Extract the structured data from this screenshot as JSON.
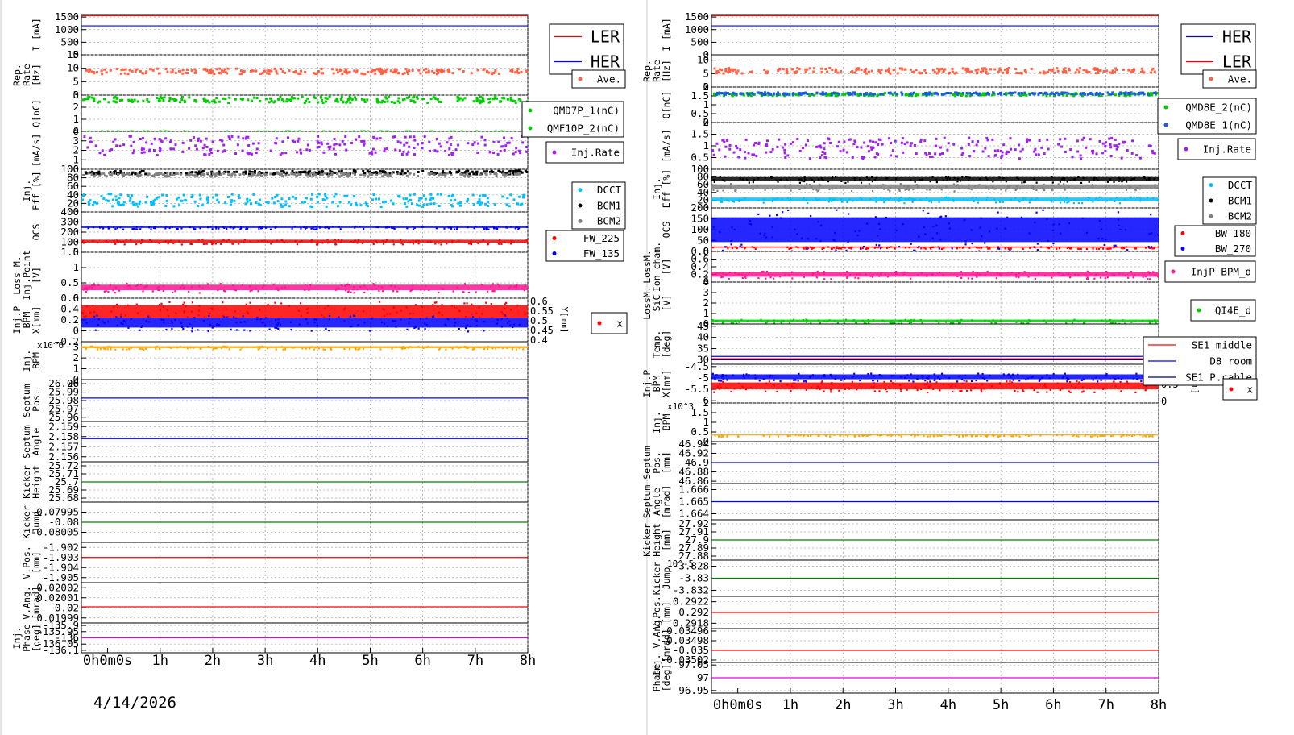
{
  "date": "4/14/2026",
  "time_ticks": [
    "0h0m0s",
    "1h",
    "2h",
    "3h",
    "4h",
    "5h",
    "6h",
    "7h",
    "8h"
  ],
  "colors": {
    "red": "#ff0000",
    "blue": "#0000ff",
    "salmon": "#ff6347",
    "green": "#00cc00",
    "purple": "#a020f0",
    "gray": "#808080",
    "black": "#000000",
    "cyan": "#00bfff",
    "pink": "#ff1493",
    "orange": "#ffa500",
    "darkgreen": "#008000",
    "magenta": "#e000e0",
    "navy": "#000080",
    "steelblue": "#1e5adc"
  },
  "chart_data": [
    {
      "type": "scatter",
      "title": "",
      "x_range": [
        "0h",
        "8h"
      ],
      "panels": [
        {
          "ylabel": [
            "I [mA]"
          ],
          "yticks": [
            "1500",
            "1000",
            "500",
            "0"
          ],
          "ylim": [
            0,
            1600
          ],
          "series": [
            {
              "name": "LER",
              "kind": "line",
              "color": "red",
              "level": 1550
            },
            {
              "name": "HER",
              "kind": "line",
              "color": "blue",
              "level": 1150
            }
          ]
        },
        {
          "ylabel": [
            "Rep.",
            "Rate",
            "[Hz]"
          ],
          "yticks": [
            "15",
            "10",
            "5",
            "0"
          ],
          "ylim": [
            0,
            15
          ],
          "series": [
            {
              "name": "Ave.",
              "kind": "dots",
              "color": "salmon",
              "level": 9.3,
              "spread": 1.0
            }
          ]
        },
        {
          "ylabel": [
            "Q[nC]"
          ],
          "yticks": [
            "3",
            "2",
            "1",
            "0"
          ],
          "ylim": [
            0,
            3
          ],
          "series": [
            {
              "name": "QMD7P_1(nC)",
              "kind": "dots",
              "color": "green",
              "level": 2.7,
              "spread": 0.25
            },
            {
              "name": "QMF10P_2(nC)",
              "kind": "dots",
              "color": "green",
              "level": 0.05,
              "spread": 0.05
            }
          ]
        },
        {
          "ylabel": [
            "[mA/s]"
          ],
          "yticks": [
            "4",
            "3",
            "2",
            "1",
            "0"
          ],
          "ylim": [
            0,
            4
          ],
          "series": [
            {
              "name": "Inj.Rate",
              "kind": "dots",
              "color": "purple",
              "level": 2.6,
              "spread": 1.0
            }
          ]
        },
        {
          "ylabel": [
            "Inj.",
            "Eff [%]"
          ],
          "yticks": [
            "100",
            "80",
            "60",
            "40",
            "20",
            "0"
          ],
          "ylim": [
            0,
            100
          ],
          "series": [
            {
              "name": "DCCT",
              "kind": "dots",
              "color": "cyan",
              "level": 30,
              "spread": 15
            },
            {
              "name": "BCM1",
              "kind": "dots",
              "color": "black",
              "level": 95,
              "spread": 4
            },
            {
              "name": "BCM2",
              "kind": "dots",
              "color": "gray",
              "level": 90,
              "spread": 4
            }
          ]
        },
        {
          "ylabel": [
            "OCS"
          ],
          "yticks": [
            "400",
            "300",
            "200",
            "100",
            "0"
          ],
          "ylim": [
            0,
            400
          ],
          "series": [
            {
              "name": "FW_225",
              "kind": "band",
              "color": "red",
              "level": 110,
              "spread": 25
            },
            {
              "name": "FW_135",
              "kind": "band",
              "color": "blue",
              "level": 250,
              "spread": 15
            }
          ]
        },
        {
          "ylabel": [
            "Loss M.",
            "Inj.Point",
            "[V]"
          ],
          "yticks": [
            "1.5",
            "1",
            "0.5",
            "0"
          ],
          "ylim": [
            0,
            1.5
          ],
          "series": [
            {
              "name": "",
              "kind": "band",
              "color": "pink",
              "level": 0.35,
              "spread": 0.15
            }
          ]
        },
        {
          "ylabel": [
            "Inj.P",
            "BPM",
            "X[mm]"
          ],
          "yticks": [
            "0.6",
            "0.4",
            "0.2",
            "0",
            "-0.2"
          ],
          "ylim": [
            -0.2,
            0.6
          ],
          "right_ticks": [
            "0.6",
            "0.55",
            "0.5",
            "0.45",
            "0.4"
          ],
          "right_label": "Y[mm]",
          "series": [
            {
              "name": "x",
              "kind": "band",
              "color": "red",
              "level": 0.35,
              "spread": 0.2
            },
            {
              "name": "",
              "kind": "band",
              "color": "blue",
              "level": 0.15,
              "spread": 0.15
            }
          ]
        },
        {
          "ylabel": [
            "Inj.",
            "BPM"
          ],
          "yticks": [
            "3",
            "2",
            "1",
            "0"
          ],
          "ylim": [
            0,
            3.5
          ],
          "multiplier": "x10^6",
          "series": [
            {
              "name": "",
              "kind": "band",
              "color": "orange",
              "level": 3.0,
              "spread": 0.15
            }
          ]
        },
        {
          "ylabel": [
            "Septum",
            "Pos."
          ],
          "yticks": [
            "26.00",
            "26",
            "25.99",
            "25.98",
            "25.97",
            "25.96"
          ],
          "ylim": [
            25.955,
            26.005
          ],
          "series": [
            {
              "name": "",
              "kind": "line",
              "color": "blue",
              "level": 25.983
            }
          ]
        },
        {
          "ylabel": [
            "Septum",
            "Angle"
          ],
          "yticks": [
            "2.159",
            "2.158",
            "2.157",
            "2.156"
          ],
          "ylim": [
            2.1555,
            2.1595
          ],
          "series": [
            {
              "name": "",
              "kind": "line",
              "color": "blue",
              "level": 2.1578
            }
          ]
        },
        {
          "ylabel": [
            "Kicker",
            "Height"
          ],
          "yticks": [
            "25.72",
            "25.71",
            "25.7",
            "25.69",
            "25.68"
          ],
          "ylim": [
            25.675,
            25.725
          ],
          "series": [
            {
              "name": "",
              "kind": "line",
              "color": "darkgreen",
              "level": 25.7
            }
          ]
        },
        {
          "ylabel": [
            "Kicker",
            "Jump"
          ],
          "yticks": [
            "-0.07995",
            "-0.08",
            "-0.08005"
          ],
          "ylim": [
            -0.0801,
            -0.0799
          ],
          "series": [
            {
              "name": "",
              "kind": "line",
              "color": "darkgreen",
              "level": -0.08
            }
          ]
        },
        {
          "ylabel": [
            "V.Pos.",
            "[mm]"
          ],
          "yticks": [
            "-1.902",
            "-1.903",
            "-1.904",
            "-1.905"
          ],
          "ylim": [
            -1.9055,
            -1.9015
          ],
          "series": [
            {
              "name": "",
              "kind": "line",
              "color": "red",
              "level": -1.903
            }
          ]
        },
        {
          "ylabel": [
            "V.Ang.",
            "[mrad]"
          ],
          "yticks": [
            "0.02002",
            "0.02001",
            "0.02",
            "0.01999"
          ],
          "ylim": [
            0.019985,
            0.020025
          ],
          "series": [
            {
              "name": "",
              "kind": "line",
              "color": "red",
              "level": 0.020001
            }
          ]
        },
        {
          "ylabel": [
            "Inj.",
            "Phase",
            "[deg]"
          ],
          "yticks": [
            "-135.9",
            "-135.95",
            "-136",
            "-136.05",
            "-136.1"
          ],
          "ylim": [
            -136.12,
            -135.88
          ],
          "series": [
            {
              "name": "",
              "kind": "line",
              "color": "magenta",
              "level": -136.0
            }
          ]
        }
      ]
    },
    {
      "type": "scatter",
      "title": "",
      "x_range": [
        "0h",
        "8h"
      ],
      "panels": [
        {
          "ylabel": [
            "I [mA]"
          ],
          "yticks": [
            "1500",
            "1000",
            "500",
            "0"
          ],
          "ylim": [
            0,
            1600
          ],
          "series": [
            {
              "name": "HER",
              "kind": "line",
              "color": "blue",
              "level": 1150
            },
            {
              "name": "LER",
              "kind": "line",
              "color": "red",
              "level": 1550
            }
          ]
        },
        {
          "ylabel": [
            "Rep.",
            "Rate",
            "[Hz]"
          ],
          "yticks": [
            "10",
            "5",
            "0"
          ],
          "ylim": [
            0,
            12
          ],
          "series": [
            {
              "name": "Ave.",
              "kind": "dots",
              "color": "salmon",
              "level": 6.5,
              "spread": 1.0
            }
          ]
        },
        {
          "ylabel": [
            "Q[nC]"
          ],
          "yticks": [
            "2",
            "1.5",
            "1",
            "0.5",
            "0"
          ],
          "ylim": [
            0,
            2
          ],
          "series": [
            {
              "name": "QMD8E_2(nC)",
              "kind": "dots",
              "color": "green",
              "level": 1.65,
              "spread": 0.08
            },
            {
              "name": "QMD8E_1(nC)",
              "kind": "dots",
              "color": "steelblue",
              "level": 1.7,
              "spread": 0.06
            }
          ]
        },
        {
          "ylabel": [
            "[mA/s]"
          ],
          "yticks": [
            "2",
            "1.5",
            "1",
            "0.5",
            "0"
          ],
          "ylim": [
            0,
            2
          ],
          "series": [
            {
              "name": "Inj.Rate",
              "kind": "dots",
              "color": "purple",
              "level": 0.95,
              "spread": 0.45
            }
          ]
        },
        {
          "ylabel": [
            "Inj.",
            "Eff [%]"
          ],
          "yticks": [
            "100",
            "80",
            "60",
            "40",
            "20",
            "0"
          ],
          "ylim": [
            0,
            100
          ],
          "series": [
            {
              "name": "DCCT",
              "kind": "band",
              "color": "cyan",
              "level": 22,
              "spread": 8
            },
            {
              "name": "BCM1",
              "kind": "band",
              "color": "black",
              "level": 75,
              "spread": 8
            },
            {
              "name": "BCM2",
              "kind": "band",
              "color": "gray",
              "level": 55,
              "spread": 10
            }
          ]
        },
        {
          "ylabel": [
            "OCS"
          ],
          "yticks": [
            "200",
            "150",
            "100",
            "50",
            "0"
          ],
          "ylim": [
            0,
            200
          ],
          "series": [
            {
              "name": "BW_180",
              "kind": "band",
              "color": "red",
              "level": 20,
              "spread": 5
            },
            {
              "name": "BW_270",
              "kind": "band",
              "color": "blue",
              "level": 100,
              "spread": 95
            }
          ]
        },
        {
          "ylabel": [
            "LossM.",
            "Ion cham.",
            "[V]"
          ],
          "yticks": [
            "0.8",
            "0.6",
            "0.4",
            "0.2",
            "0"
          ],
          "ylim": [
            0,
            0.8
          ],
          "series": [
            {
              "name": "InjP BPM_d",
              "kind": "band",
              "color": "pink",
              "level": 0.2,
              "spread": 0.1
            }
          ]
        },
        {
          "ylabel": [
            "LossM.",
            "SiC",
            "[V]"
          ],
          "yticks": [
            "4",
            "3",
            "2",
            "1",
            "0"
          ],
          "ylim": [
            0,
            4
          ],
          "series": [
            {
              "name": "QI4E_d",
              "kind": "band",
              "color": "green",
              "level": 0.3,
              "spread": 0.2
            }
          ]
        },
        {
          "ylabel": [
            "Temp.",
            "[deg]"
          ],
          "yticks": [
            "45",
            "40",
            "35",
            "30"
          ],
          "ylim": [
            28,
            46
          ],
          "series": [
            {
              "name": "SE1 middle",
              "kind": "line",
              "color": "red",
              "level": 30.5
            },
            {
              "name": "D8 room",
              "kind": "line",
              "color": "blue",
              "level": 31.5
            },
            {
              "name": "SE1 P.cable",
              "kind": "line",
              "color": "navy",
              "level": 30.0
            }
          ]
        },
        {
          "ylabel": [
            "Inj.P",
            "BPM",
            "X[mm]"
          ],
          "yticks": [
            "-4.5",
            "-5",
            "-5.5",
            "-6"
          ],
          "ylim": [
            -6.1,
            -4.4
          ],
          "right_ticks": [
            "1",
            "0.5",
            "0"
          ],
          "right_label": "[mm]",
          "series": [
            {
              "name": "x",
              "kind": "band",
              "color": "red",
              "level": -5.35,
              "spread": 0.25
            },
            {
              "name": "",
              "kind": "band",
              "color": "blue",
              "level": -4.95,
              "spread": 0.18
            }
          ]
        },
        {
          "ylabel": [
            "Inj.",
            "BPM"
          ],
          "yticks": [
            "2",
            "1.5",
            "1",
            "0.5",
            "0"
          ],
          "ylim": [
            0,
            2
          ],
          "multiplier": "x10^3",
          "series": [
            {
              "name": "",
              "kind": "band",
              "color": "orange",
              "level": 0.35,
              "spread": 0.05
            }
          ]
        },
        {
          "ylabel": [
            "Septum",
            "Pos.",
            "[mm]"
          ],
          "yticks": [
            "46.94",
            "46.92",
            "46.9",
            "46.88",
            "46.86"
          ],
          "ylim": [
            46.855,
            46.945
          ],
          "series": [
            {
              "name": "",
              "kind": "line",
              "color": "blue",
              "level": 46.9
            }
          ]
        },
        {
          "ylabel": [
            "Septum",
            "Angle",
            "[mrad]"
          ],
          "yticks": [
            "1.666",
            "1.665",
            "1.664"
          ],
          "ylim": [
            1.6635,
            1.6665
          ],
          "series": [
            {
              "name": "",
              "kind": "line",
              "color": "blue",
              "level": 1.665
            }
          ]
        },
        {
          "ylabel": [
            "Kicker",
            "Height",
            "[mm]"
          ],
          "yticks": [
            "27.92",
            "27.91",
            "27.9",
            "27.89",
            "27.88"
          ],
          "ylim": [
            27.875,
            27.925
          ],
          "series": [
            {
              "name": "",
              "kind": "line",
              "color": "darkgreen",
              "level": 27.9
            }
          ]
        },
        {
          "ylabel": [
            "Kicker",
            "Jump"
          ],
          "yticks": [
            "-3.828",
            "-3.83",
            "-3.832"
          ],
          "ylim": [
            -3.833,
            -3.827
          ],
          "multiplier": "10^-5",
          "series": [
            {
              "name": "",
              "kind": "line",
              "color": "darkgreen",
              "level": -3.83
            }
          ]
        },
        {
          "ylabel": [
            "V.Pos.",
            "[mm]"
          ],
          "yticks": [
            "0.2922",
            "0.292",
            "0.2918"
          ],
          "ylim": [
            0.2917,
            0.2923
          ],
          "series": [
            {
              "name": "",
              "kind": "line",
              "color": "red",
              "level": 0.292
            }
          ]
        },
        {
          "ylabel": [
            "Inj. V.Ang.",
            "[mrad]"
          ],
          "yticks": [
            "-0.03496",
            "-0.03498",
            "-0.035",
            "-0.03502"
          ],
          "ylim": [
            -0.035025,
            -0.034955
          ],
          "series": [
            {
              "name": "",
              "kind": "line",
              "color": "red",
              "level": -0.035
            }
          ]
        },
        {
          "ylabel": [
            "Phase",
            "[deg]"
          ],
          "yticks": [
            "97.05",
            "97",
            "96.95"
          ],
          "ylim": [
            96.94,
            97.06
          ],
          "series": [
            {
              "name": "",
              "kind": "line",
              "color": "magenta",
              "level": 97.0
            }
          ]
        }
      ]
    }
  ]
}
